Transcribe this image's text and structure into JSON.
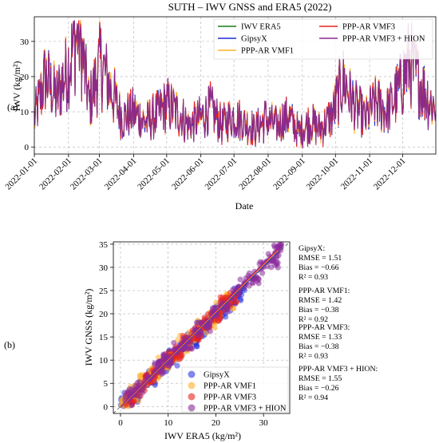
{
  "panel_labels": [
    "(a)",
    "(b)"
  ],
  "chart_data": [
    {
      "type": "line",
      "title": "SUTH – IWV GNSS and ERA5 (2022)",
      "xlabel": "Date",
      "ylabel": "IWV (kg/m²)",
      "xlim": [
        "2022-01-01",
        "2022-12-31"
      ],
      "ylim": [
        -2,
        37
      ],
      "yticks": [
        0,
        10,
        20,
        30
      ],
      "xticks": [
        "2022-01-01",
        "2022-02-01",
        "2022-03-01",
        "2022-04-01",
        "2022-05-01",
        "2022-06-01",
        "2022-07-01",
        "2022-08-01",
        "2022-09-01",
        "2022-10-01",
        "2022-11-01",
        "2022-12-01"
      ],
      "grid": true,
      "legend_position": "top-right",
      "legend": [
        "IWV ERA5",
        "GipsyX",
        "PPP-AR VMF1",
        "PPP-AR VMF3",
        "PPP-AR VMF3 + HION"
      ],
      "series": [
        {
          "name": "IWV ERA5",
          "color": "#1a7a1a"
        },
        {
          "name": "GipsyX",
          "color": "#1f2fd0"
        },
        {
          "name": "PPP-AR VMF1",
          "color": "#ffb02e"
        },
        {
          "name": "PPP-AR VMF3",
          "color": "#e8231e"
        },
        {
          "name": "PPP-AR VMF3 + HION",
          "color": "#8a2a8a"
        }
      ],
      "x": [
        "2022-01-01",
        "2022-01-11",
        "2022-01-21",
        "2022-01-31",
        "2022-02-10",
        "2022-02-20",
        "2022-03-02",
        "2022-03-12",
        "2022-03-22",
        "2022-04-01",
        "2022-04-11",
        "2022-04-21",
        "2022-05-01",
        "2022-05-11",
        "2022-05-21",
        "2022-05-31",
        "2022-06-10",
        "2022-06-20",
        "2022-06-30",
        "2022-07-10",
        "2022-07-20",
        "2022-07-30",
        "2022-08-09",
        "2022-08-19",
        "2022-08-29",
        "2022-09-08",
        "2022-09-18",
        "2022-09-28",
        "2022-10-08",
        "2022-10-18",
        "2022-10-28",
        "2022-11-07",
        "2022-11-17",
        "2022-11-27",
        "2022-12-07",
        "2022-12-17",
        "2022-12-27"
      ],
      "y": [
        8,
        20,
        14,
        22,
        34,
        12,
        24,
        16,
        8,
        10,
        7,
        9,
        12,
        10,
        6,
        8,
        11,
        6,
        9,
        7,
        5,
        8,
        6,
        9,
        4,
        7,
        5,
        9,
        19,
        12,
        8,
        13,
        10,
        16,
        24,
        18,
        12
      ]
    },
    {
      "type": "scatter",
      "xlabel": "IWV ERA5 (kg/m²)",
      "ylabel": "IWV GNSS (kg/m²)",
      "xlim": [
        -1.5,
        35.5
      ],
      "ylim": [
        -1.5,
        35.5
      ],
      "xticks": [
        0,
        10,
        20,
        30
      ],
      "yticks": [
        0,
        5,
        10,
        15,
        20,
        25,
        30,
        35
      ],
      "grid": true,
      "legend_position": "bottom-right",
      "series": [
        {
          "name": "GipsyX",
          "color": "#2b35e0",
          "x": [
            1,
            3,
            5,
            7,
            9,
            11,
            13,
            15,
            17,
            19,
            21,
            23,
            25
          ],
          "y": [
            1.2,
            2.6,
            4.8,
            6.5,
            8.8,
            10.6,
            12.9,
            14.5,
            16.8,
            18.4,
            20.9,
            22.2,
            24.6
          ]
        },
        {
          "name": "PPP-AR VMF1",
          "color": "#ffae28",
          "x": [
            1,
            3,
            5,
            7,
            9,
            11,
            13,
            15,
            17,
            19,
            21,
            23
          ],
          "y": [
            0.6,
            2.8,
            5.3,
            6.9,
            9.1,
            10.8,
            13.4,
            14.9,
            17.1,
            18.7,
            21.3,
            22.8
          ]
        },
        {
          "name": "PPP-AR VMF3",
          "color": "#e8231e",
          "x": [
            2,
            4,
            6,
            8,
            10,
            12,
            14,
            16,
            18,
            20,
            22,
            24
          ],
          "y": [
            1.7,
            3.6,
            6.2,
            7.8,
            10.3,
            11.5,
            14.2,
            15.6,
            18.2,
            19.4,
            22.5,
            23.7
          ]
        },
        {
          "name": "PPP-AR VMF3 + HION",
          "color": "#8a2a9a",
          "x": [
            2,
            4,
            6,
            8,
            10,
            12,
            14,
            16,
            18,
            20,
            22,
            24,
            26,
            28,
            30,
            32,
            33
          ],
          "y": [
            2.2,
            4.1,
            5.8,
            8.3,
            9.6,
            12.4,
            13.8,
            16.5,
            17.6,
            20.3,
            21.8,
            24.5,
            26.2,
            27.6,
            30.1,
            31.4,
            34.5
          ]
        }
      ]
    }
  ],
  "stats": [
    {
      "name": "GipsyX:",
      "rmse": "RMSE = 1.51",
      "bias": "Bias = −0.66",
      "r2": "R² = 0.93"
    },
    {
      "name": "PPP-AR VMF1:",
      "rmse": "RMSE = 1.42",
      "bias": "Bias = −0.38",
      "r2": "R² = 0.92"
    },
    {
      "name": "PPP-AR VMF3:",
      "rmse": "RMSE = 1.33",
      "bias": "Bias = −0.38",
      "r2": "R² = 0.93"
    },
    {
      "name": "PPP-AR VMF3 + HION:",
      "rmse": "RMSE = 1.55",
      "bias": "Bias = −0.26",
      "r2": "R² = 0.94"
    }
  ]
}
